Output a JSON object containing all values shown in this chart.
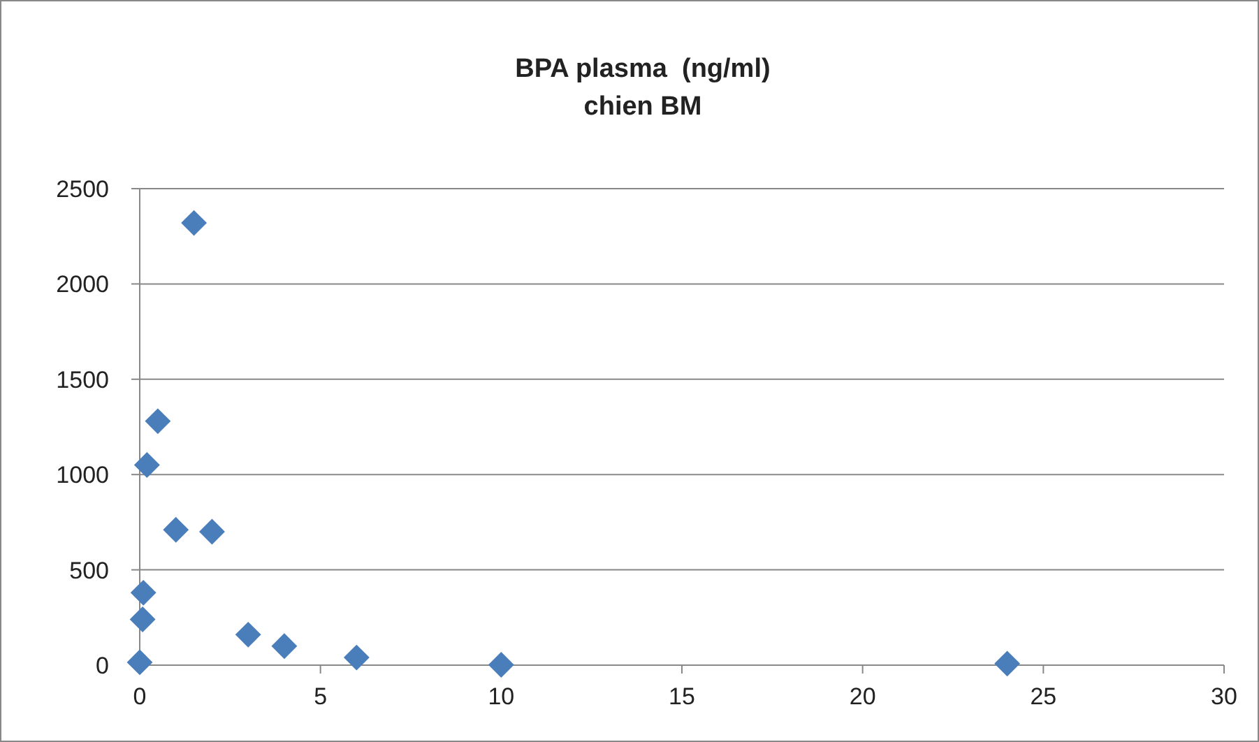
{
  "chart_data": {
    "type": "scatter",
    "title": "BPA plasma  (ng/ml)\nchien BM",
    "x": [
      0,
      0.08,
      0.1,
      0.2,
      0.5,
      1,
      1.5,
      2,
      3,
      4,
      6,
      10,
      24
    ],
    "series": [
      {
        "color": "#4a7ebb",
        "values": [
          15,
          240,
          380,
          1050,
          1280,
          710,
          2320,
          700,
          160,
          100,
          40,
          2,
          8
        ]
      }
    ],
    "marker": "diamond",
    "xlim": [
      0,
      30
    ],
    "xticks": [
      0,
      5,
      10,
      15,
      20,
      25,
      30
    ],
    "ylim": [
      0,
      2500
    ],
    "yticks": [
      0,
      500,
      1000,
      1500,
      2000,
      2500
    ],
    "grid": "y"
  }
}
